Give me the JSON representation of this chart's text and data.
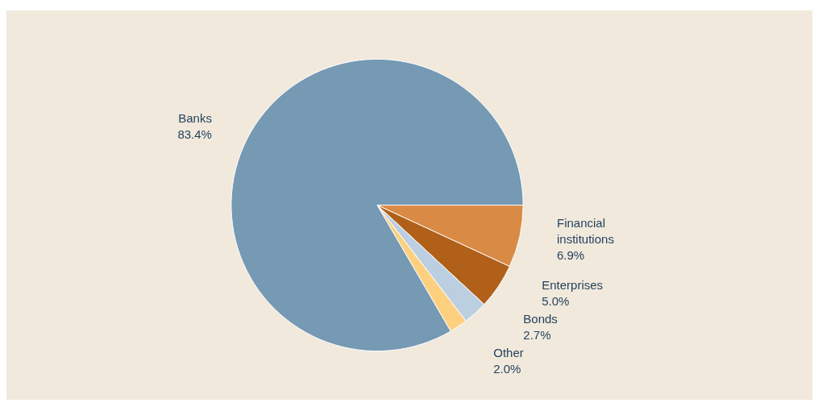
{
  "chart_data": {
    "type": "pie",
    "categories": [
      "Financial institutions",
      "Enterprises",
      "Bonds",
      "Other",
      "Banks"
    ],
    "values": [
      6.9,
      5.0,
      2.7,
      2.0,
      83.4
    ],
    "value_labels": [
      "6.9%",
      "5.0%",
      "2.7%",
      "2.0%",
      "83.4%"
    ],
    "colors": [
      "#d98a45",
      "#b06019",
      "#bccfe0",
      "#fdd080",
      "#7699b4"
    ]
  }
}
